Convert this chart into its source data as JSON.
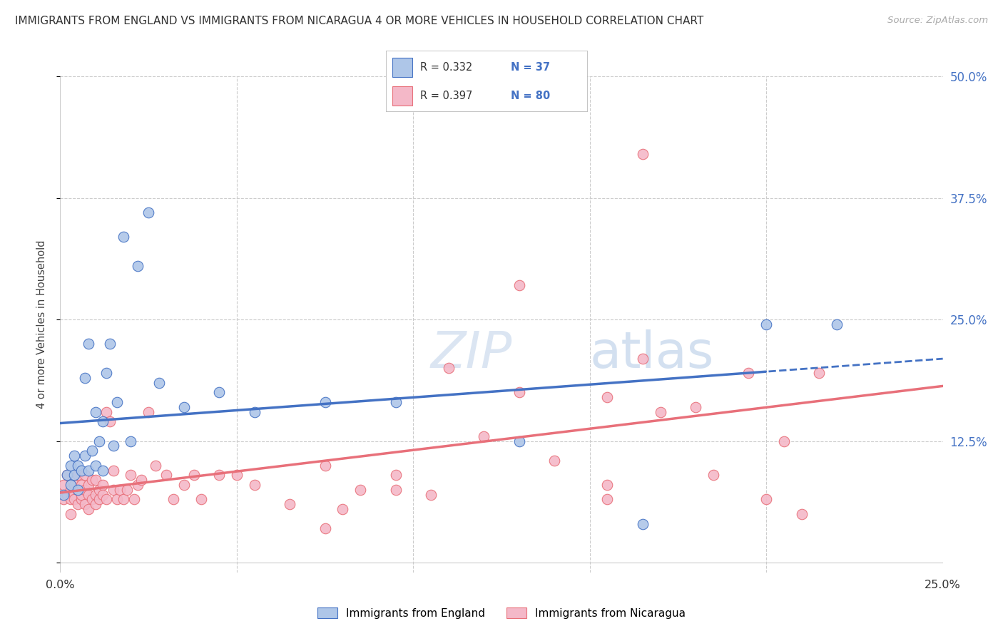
{
  "title": "IMMIGRANTS FROM ENGLAND VS IMMIGRANTS FROM NICARAGUA 4 OR MORE VEHICLES IN HOUSEHOLD CORRELATION CHART",
  "source": "Source: ZipAtlas.com",
  "ylabel_label": "4 or more Vehicles in Household",
  "xlim": [
    0.0,
    0.25
  ],
  "ylim": [
    -0.01,
    0.5
  ],
  "england_color": "#aec6e8",
  "nicaragua_color": "#f4b8c8",
  "england_line_color": "#4472c4",
  "nicaragua_line_color": "#e8707a",
  "england_x": [
    0.001,
    0.002,
    0.003,
    0.003,
    0.004,
    0.004,
    0.005,
    0.005,
    0.006,
    0.007,
    0.008,
    0.009,
    0.01,
    0.011,
    0.012,
    0.013,
    0.014,
    0.016,
    0.018,
    0.022,
    0.025,
    0.028,
    0.035,
    0.045,
    0.055,
    0.075,
    0.095,
    0.13,
    0.165,
    0.2,
    0.22,
    0.007,
    0.008,
    0.01,
    0.012,
    0.015,
    0.02
  ],
  "england_y": [
    0.07,
    0.09,
    0.1,
    0.08,
    0.09,
    0.11,
    0.075,
    0.1,
    0.095,
    0.11,
    0.095,
    0.115,
    0.1,
    0.125,
    0.095,
    0.195,
    0.225,
    0.165,
    0.335,
    0.305,
    0.36,
    0.185,
    0.16,
    0.175,
    0.155,
    0.165,
    0.165,
    0.125,
    0.04,
    0.245,
    0.245,
    0.19,
    0.225,
    0.155,
    0.145,
    0.12,
    0.125
  ],
  "nicaragua_x": [
    0.001,
    0.001,
    0.002,
    0.002,
    0.003,
    0.003,
    0.003,
    0.004,
    0.004,
    0.004,
    0.005,
    0.005,
    0.005,
    0.006,
    0.006,
    0.006,
    0.007,
    0.007,
    0.007,
    0.008,
    0.008,
    0.008,
    0.009,
    0.009,
    0.01,
    0.01,
    0.01,
    0.011,
    0.011,
    0.012,
    0.012,
    0.013,
    0.013,
    0.014,
    0.015,
    0.015,
    0.016,
    0.017,
    0.018,
    0.019,
    0.02,
    0.021,
    0.022,
    0.023,
    0.025,
    0.027,
    0.03,
    0.032,
    0.035,
    0.038,
    0.04,
    0.045,
    0.05,
    0.055,
    0.065,
    0.075,
    0.085,
    0.095,
    0.11,
    0.12,
    0.13,
    0.14,
    0.155,
    0.165,
    0.17,
    0.185,
    0.195,
    0.205,
    0.215,
    0.165,
    0.13,
    0.155,
    0.095,
    0.08,
    0.2,
    0.21,
    0.18,
    0.155,
    0.105,
    0.075
  ],
  "nicaragua_y": [
    0.065,
    0.08,
    0.07,
    0.09,
    0.065,
    0.075,
    0.05,
    0.07,
    0.08,
    0.065,
    0.06,
    0.075,
    0.09,
    0.065,
    0.08,
    0.07,
    0.06,
    0.075,
    0.09,
    0.055,
    0.07,
    0.08,
    0.065,
    0.085,
    0.07,
    0.085,
    0.06,
    0.065,
    0.075,
    0.08,
    0.07,
    0.065,
    0.155,
    0.145,
    0.075,
    0.095,
    0.065,
    0.075,
    0.065,
    0.075,
    0.09,
    0.065,
    0.08,
    0.085,
    0.155,
    0.1,
    0.09,
    0.065,
    0.08,
    0.09,
    0.065,
    0.09,
    0.09,
    0.08,
    0.06,
    0.1,
    0.075,
    0.09,
    0.2,
    0.13,
    0.175,
    0.105,
    0.17,
    0.21,
    0.155,
    0.09,
    0.195,
    0.125,
    0.195,
    0.42,
    0.285,
    0.065,
    0.075,
    0.055,
    0.065,
    0.05,
    0.16,
    0.08,
    0.07,
    0.035
  ]
}
